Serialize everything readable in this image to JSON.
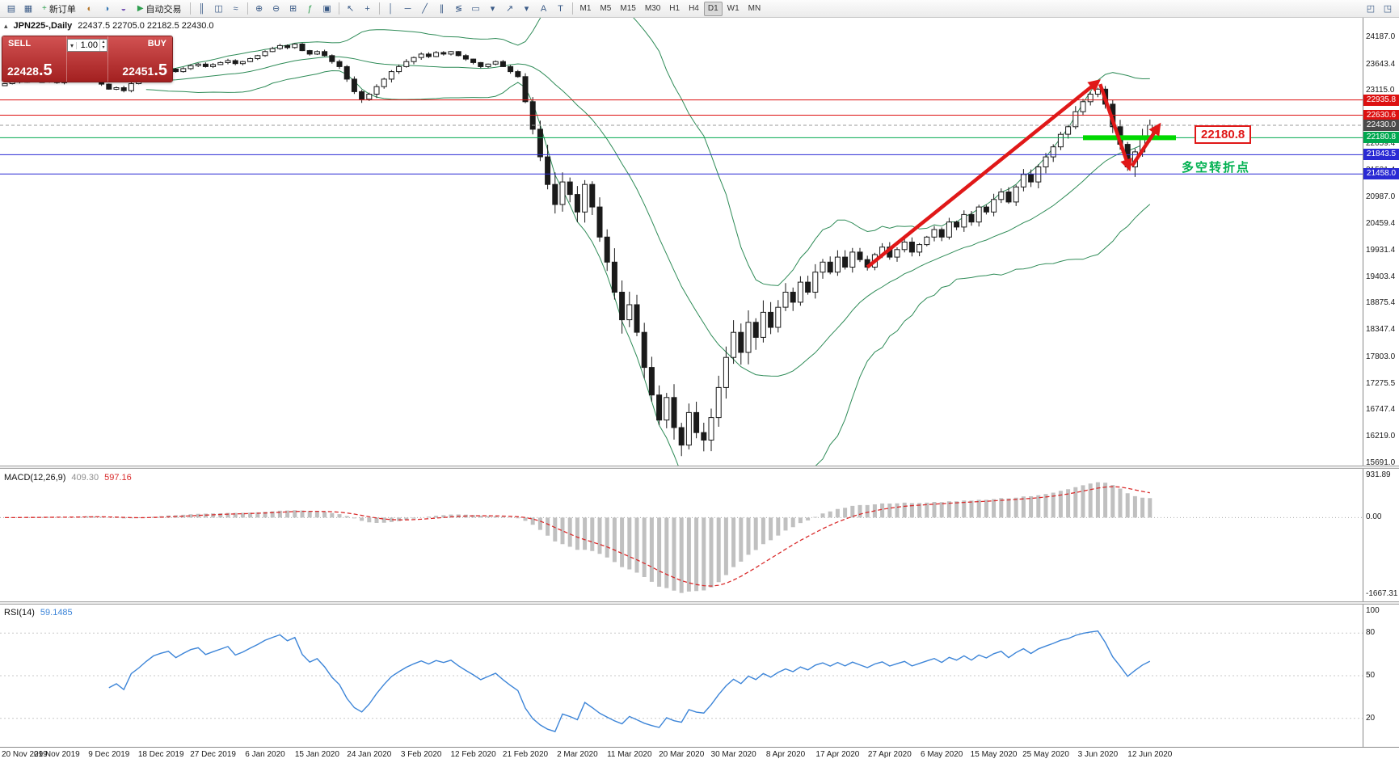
{
  "toolbar": {
    "items": [
      {
        "type": "icon",
        "name": "chart-window-icon",
        "glyph": "▤"
      },
      {
        "type": "icon",
        "name": "profile-icon",
        "glyph": "▦"
      },
      {
        "type": "button",
        "name": "new-order-button",
        "glyph": "+",
        "glyph_color": "#2e9e4f",
        "label": "新订单"
      },
      {
        "type": "icon",
        "name": "market-watch-icon",
        "glyph": "◐",
        "glyph_color": "#b5762a"
      },
      {
        "type": "icon",
        "name": "data-window-icon",
        "glyph": "◑",
        "glyph_color": "#3a7ab5"
      },
      {
        "type": "icon",
        "name": "navigator-icon",
        "glyph": "◒",
        "glyph_color": "#7a5ab5"
      },
      {
        "type": "button",
        "name": "autotrade-button",
        "glyph": "▶",
        "glyph_color": "#2e9e4f",
        "label": "自动交易"
      },
      {
        "type": "sep"
      },
      {
        "type": "icon",
        "name": "bar-chart-icon",
        "glyph": "║"
      },
      {
        "type": "icon",
        "name": "candlestick-chart-icon",
        "glyph": "◫"
      },
      {
        "type": "icon",
        "name": "line-chart-icon",
        "glyph": "≈"
      },
      {
        "type": "sep"
      },
      {
        "type": "icon",
        "name": "zoom-in-icon",
        "glyph": "⊕"
      },
      {
        "type": "icon",
        "name": "zoom-out-icon",
        "glyph": "⊖"
      },
      {
        "type": "icon",
        "name": "tile-windows-icon",
        "glyph": "⊞"
      },
      {
        "type": "icon",
        "name": "indicators-icon",
        "glyph": "ƒ",
        "glyph_color": "#2e9e4f"
      },
      {
        "type": "icon",
        "name": "templates-icon",
        "glyph": "▣"
      },
      {
        "type": "sep"
      },
      {
        "type": "icon",
        "name": "cursor-icon",
        "glyph": "↖"
      },
      {
        "type": "icon",
        "name": "crosshair-icon",
        "glyph": "+"
      },
      {
        "type": "sep"
      },
      {
        "type": "icon",
        "name": "vertical-line-icon",
        "glyph": "│"
      },
      {
        "type": "icon",
        "name": "horizontal-line-icon",
        "glyph": "─"
      },
      {
        "type": "icon",
        "name": "trendline-icon",
        "glyph": "╱"
      },
      {
        "type": "icon",
        "name": "equidistant-channel-icon",
        "glyph": "∥"
      },
      {
        "type": "icon",
        "name": "fibonacci-icon",
        "glyph": "≶"
      },
      {
        "type": "icon",
        "name": "shapes-icon",
        "glyph": "▭"
      },
      {
        "type": "icon",
        "name": "shapes-dropdown-icon",
        "glyph": "▾"
      },
      {
        "type": "icon",
        "name": "arrows-icon",
        "glyph": "↗"
      },
      {
        "type": "icon",
        "name": "arrows-dropdown-icon",
        "glyph": "▾"
      },
      {
        "type": "icon",
        "name": "text-icon",
        "glyph": "A"
      },
      {
        "type": "icon",
        "name": "text-label-icon",
        "glyph": "T"
      },
      {
        "type": "sep"
      },
      {
        "type": "tf",
        "name": "timeframe-m1-button",
        "label": "M1"
      },
      {
        "type": "tf",
        "name": "timeframe-m5-button",
        "label": "M5"
      },
      {
        "type": "tf",
        "name": "timeframe-m15-button",
        "label": "M15"
      },
      {
        "type": "tf",
        "name": "timeframe-m30-button",
        "label": "M30"
      },
      {
        "type": "tf",
        "name": "timeframe-h1-button",
        "label": "H1"
      },
      {
        "type": "tf",
        "name": "timeframe-h4-button",
        "label": "H4"
      },
      {
        "type": "tf",
        "name": "timeframe-d1-button",
        "label": "D1",
        "active": true
      },
      {
        "type": "tf",
        "name": "timeframe-w1-button",
        "label": "W1"
      },
      {
        "type": "tf",
        "name": "timeframe-mn-button",
        "label": "MN"
      },
      {
        "type": "icon",
        "name": "docking-icon",
        "glyph": "◰",
        "right": true
      },
      {
        "type": "icon",
        "name": "help-icon",
        "glyph": "◳"
      }
    ]
  },
  "chart": {
    "collapse_glyph": "▴",
    "title": "JPN225-,Daily",
    "ohlc": "22437.5 22705.0 22182.5 22430.0"
  },
  "one_click": {
    "sell_label": "SELL",
    "buy_label": "BUY",
    "volume": "1.00",
    "dropdown_glyph": "▾",
    "spinner_up": "▴",
    "spinner_down": "▾",
    "sell_price_int": "22428",
    "sell_price_frac": ".5",
    "buy_price_int": "22451",
    "buy_price_frac": ".5"
  },
  "indicators": {
    "macd": {
      "name": "MACD(12,26,9)",
      "value_main": "409.30",
      "value_signal": "597.16",
      "axis": [
        "931.89",
        "0.00",
        "-1667.31"
      ]
    },
    "rsi": {
      "name": "RSI(14)",
      "value": "59.1485",
      "axis": [
        "100",
        "80",
        "50",
        "20"
      ],
      "levels": [
        80,
        50,
        20
      ]
    }
  },
  "annotations": {
    "price_label": "22180.8",
    "turning_point": "多空转折点"
  },
  "price_tags": [
    {
      "text": "22935.8",
      "price": 22935.8,
      "color": "#dd1111"
    },
    {
      "text": "22630.6",
      "price": 22630.6,
      "color": "#dd1111"
    },
    {
      "text": "22430.0",
      "price": 22430.0,
      "color": "#4a4a4a"
    },
    {
      "text": "22180.8",
      "price": 22180.8,
      "color": "#00a84f"
    },
    {
      "text": "21843.5",
      "price": 21843.5,
      "color": "#2a2ad4"
    },
    {
      "text": "21458.0",
      "price": 21458.0,
      "color": "#2a2ad4"
    }
  ],
  "chart_data": {
    "type": "candlestick",
    "symbol": "JPN225-",
    "timeframe": "Daily",
    "ohlc_display": {
      "open": 22437.5,
      "high": 22705.0,
      "low": 22182.5,
      "close": 22430.0
    },
    "y_axis_ticks": [
      "24187.0",
      "23643.4",
      "23115.0",
      "22587.0",
      "22059.4",
      "21531.4",
      "20987.0",
      "20459.4",
      "19931.4",
      "19403.4",
      "18875.4",
      "18347.4",
      "17803.0",
      "17275.5",
      "16747.4",
      "16219.0",
      "15691.0"
    ],
    "x_dates": [
      "20 Nov 2019",
      "29 Nov 2019",
      "9 Dec 2019",
      "18 Dec 2019",
      "27 Dec 2019",
      "6 Jan 2020",
      "15 Jan 2020",
      "24 Jan 2020",
      "3 Feb 2020",
      "12 Feb 2020",
      "21 Feb 2020",
      "2 Mar 2020",
      "11 Mar 2020",
      "20 Mar 2020",
      "30 Mar 2020",
      "8 Apr 2020",
      "17 Apr 2020",
      "27 Apr 2020",
      "6 May 2020",
      "15 May 2020",
      "25 May 2020",
      "3 Jun 2020",
      "12 Jun 2020"
    ],
    "candles_per_label": 7,
    "closes": [
      23260,
      23310,
      23290,
      23330,
      23300,
      23300,
      23340,
      23280,
      23310,
      23350,
      23380,
      23420,
      23350,
      23250,
      23150,
      23180,
      23120,
      23260,
      23320,
      23400,
      23480,
      23520,
      23550,
      23500,
      23560,
      23620,
      23650,
      23600,
      23640,
      23680,
      23720,
      23660,
      23700,
      23760,
      23820,
      23900,
      23960,
      24020,
      23980,
      24050,
      23920,
      23850,
      23900,
      23820,
      23700,
      23600,
      23350,
      23100,
      22950,
      23050,
      23200,
      23350,
      23500,
      23600,
      23700,
      23780,
      23850,
      23800,
      23880,
      23850,
      23900,
      23820,
      23750,
      23680,
      23600,
      23650,
      23700,
      23600,
      23500,
      23400,
      22900,
      22350,
      21800,
      21250,
      20850,
      21300,
      21050,
      20700,
      21250,
      20800,
      20200,
      19700,
      19100,
      18550,
      18850,
      18300,
      17600,
      17050,
      16550,
      17000,
      16400,
      16050,
      16700,
      16300,
      16150,
      16600,
      17200,
      17800,
      18300,
      17900,
      18500,
      18200,
      18700,
      18400,
      18800,
      19100,
      18900,
      19300,
      19100,
      19500,
      19700,
      19500,
      19800,
      19600,
      19900,
      19750,
      19600,
      19850,
      20000,
      19800,
      19950,
      20100,
      19900,
      20050,
      20200,
      20350,
      20200,
      20500,
      20400,
      20650,
      20500,
      20800,
      20700,
      20950,
      21100,
      20900,
      21200,
      21450,
      21300,
      21600,
      21800,
      22000,
      22250,
      22400,
      22700,
      22900,
      23050,
      23150,
      22850,
      22400,
      22050,
      21600,
      21900,
      22200,
      22430
    ],
    "bollinger": {
      "period": 20,
      "deviation": 2
    },
    "bollinger_color": "#2E8B57",
    "candle_bull": "#ffffff",
    "candle_bear": "#1a1a1a",
    "macd_histogram_color": "#c0c0c0",
    "macd_signal_color": "#d92b2b",
    "rsi_color": "#3d85d8",
    "hlines": [
      {
        "price": 22935.8,
        "color": "#dd1111",
        "style": "solid"
      },
      {
        "price": 22630.6,
        "color": "#dd1111",
        "style": "solid"
      },
      {
        "price": 22430.0,
        "color": "#9a9a9a",
        "style": "dash"
      },
      {
        "price": 22180.8,
        "color": "#00a84f",
        "style": "solid"
      },
      {
        "price": 21843.5,
        "color": "#2a2ad4",
        "style": "solid"
      },
      {
        "price": 21458.0,
        "color": "#2a2ad4",
        "style": "solid"
      }
    ],
    "green_segment": {
      "price": 22180.8,
      "i1": 145,
      "i2": 157.5,
      "color": "#00d800"
    },
    "arrows": [
      {
        "i1": 116,
        "p1": 19600,
        "i2": 147,
        "p2": 23300
      },
      {
        "i1": 147.3,
        "p1": 23250,
        "i2": 151.2,
        "p2": 21580
      },
      {
        "i1": 151.6,
        "p1": 21620,
        "i2": 155.2,
        "p2": 22420
      }
    ],
    "arrow_color": "#e01818"
  }
}
